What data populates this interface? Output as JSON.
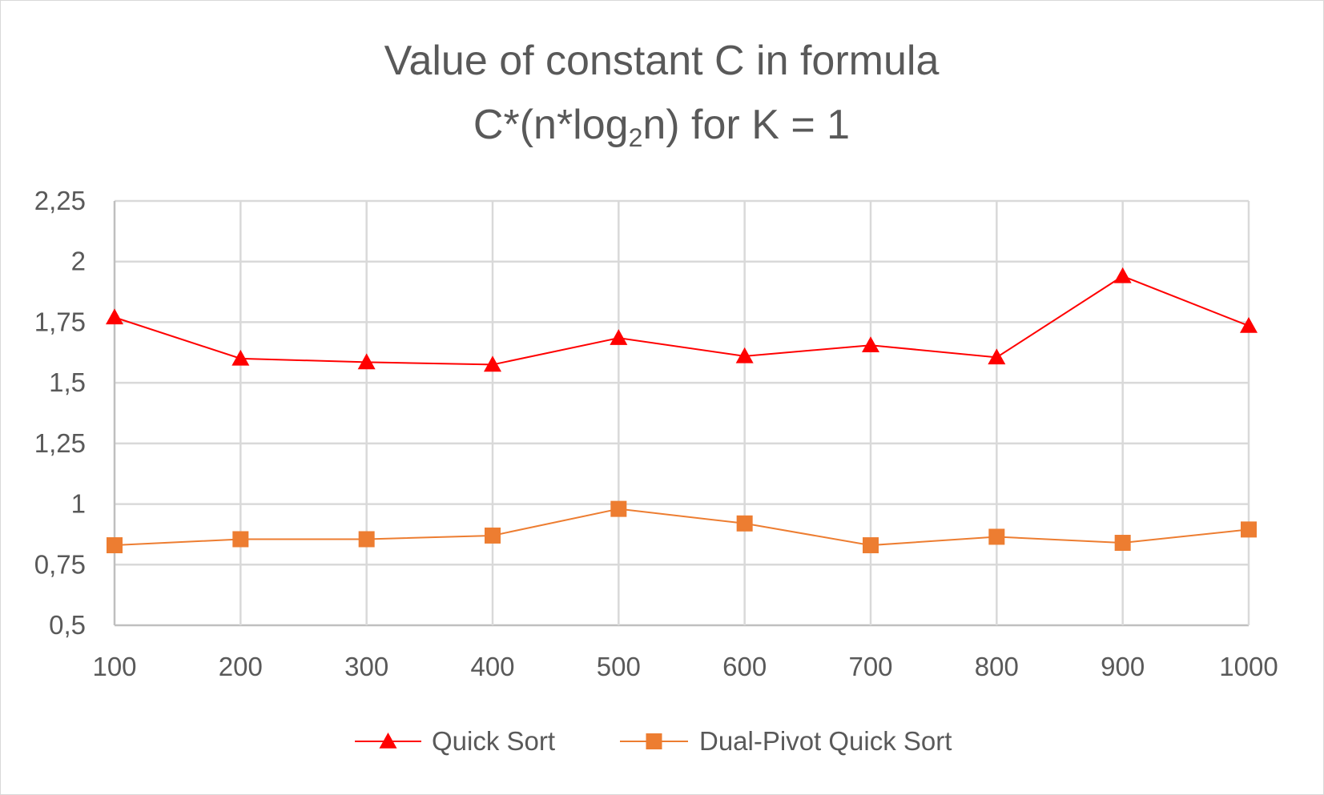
{
  "chart_data": {
    "type": "line",
    "title_line1": "Value of constant C in formula",
    "title_line2_prefix": "C*(n*log",
    "title_line2_subscript": "2",
    "title_line2_suffix": "n) for K = 1",
    "categories": [
      "100",
      "200",
      "300",
      "400",
      "500",
      "600",
      "700",
      "800",
      "900",
      "1000"
    ],
    "series": [
      {
        "name": "Quick Sort",
        "color": "#ff0000",
        "marker": "triangle",
        "values": [
          1.77,
          1.6,
          1.585,
          1.575,
          1.685,
          1.61,
          1.655,
          1.605,
          1.94,
          1.735
        ]
      },
      {
        "name": "Dual-Pivot Quick Sort",
        "color": "#ed7d31",
        "marker": "square",
        "values": [
          0.83,
          0.855,
          0.855,
          0.87,
          0.98,
          0.92,
          0.83,
          0.865,
          0.84,
          0.895
        ]
      }
    ],
    "y_ticks": [
      "0,5",
      "0,75",
      "1",
      "1,25",
      "1,5",
      "1,75",
      "2",
      "2,25"
    ],
    "y_tick_values": [
      0.5,
      0.75,
      1,
      1.25,
      1.5,
      1.75,
      2,
      2.25
    ],
    "ylim": [
      0.5,
      2.25
    ],
    "xlabel": "",
    "ylabel": "",
    "grid": true,
    "legend_position": "bottom",
    "gridline_color": "#d9d9d9",
    "axis_color": "#bfbfbf"
  }
}
